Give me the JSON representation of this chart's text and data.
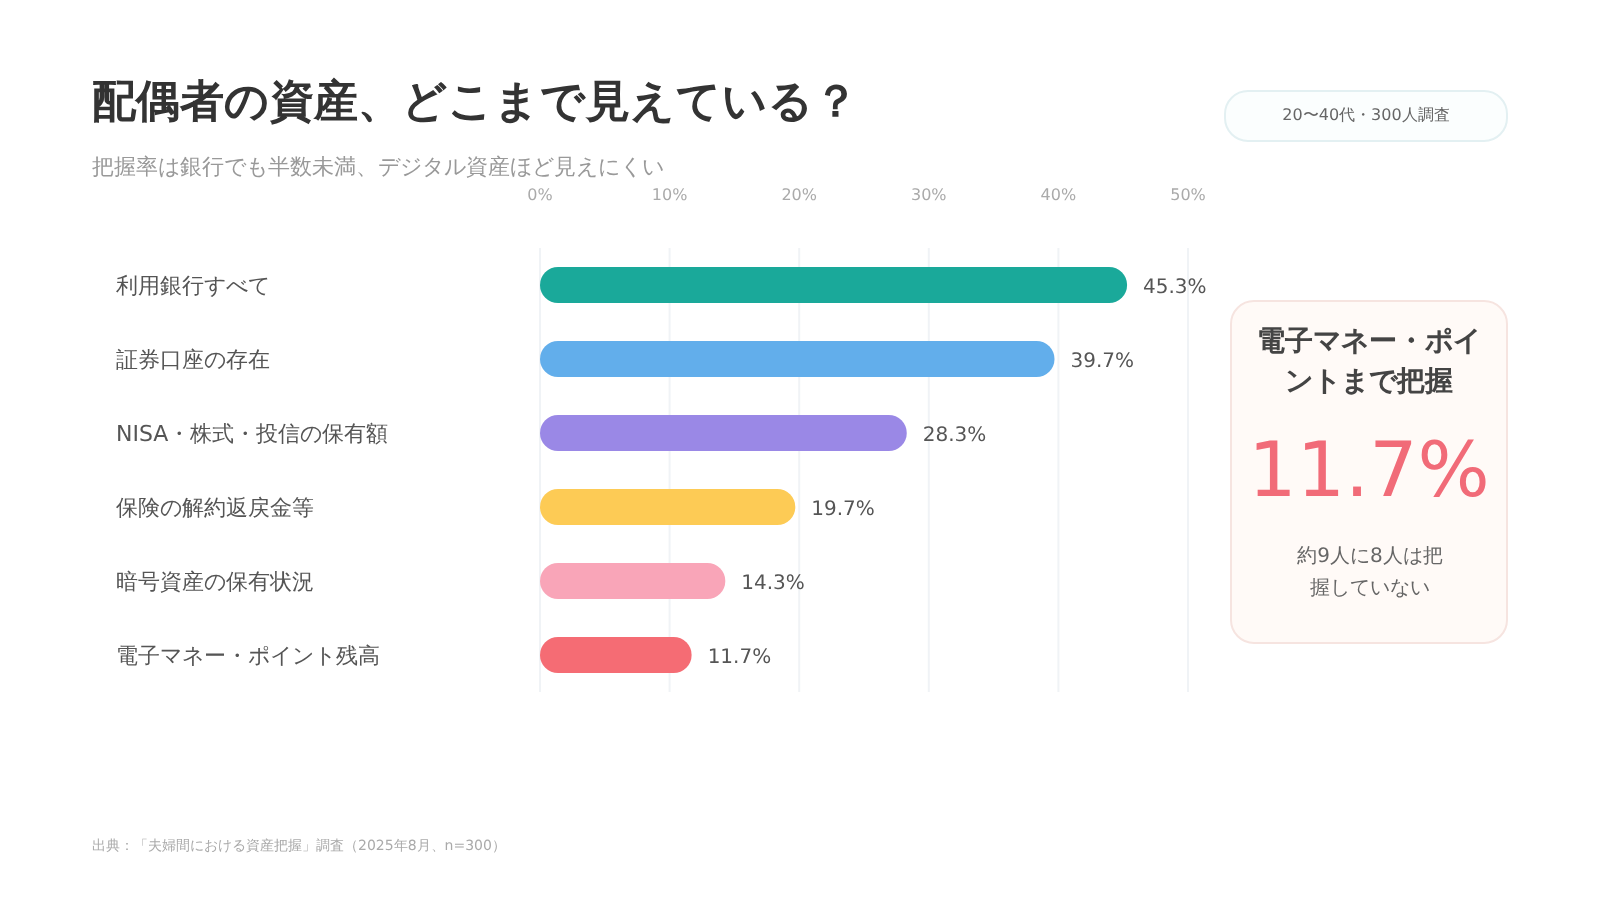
{
  "chart_data": [
    {
      "type": "bar",
      "orientation": "horizontal",
      "title": "配偶者の資産、どこまで見えている？",
      "subtitle": "把握率は銀行でも半数未満、デジタル資産ほど見えにくい",
      "categories": [
        "利用銀行すべて",
        "証券口座の存在",
        "NISA・株式・投信の保有額",
        "保険の解約返戻金等",
        "暗号資産の保有状況",
        "電子マネー・ポイント残高"
      ],
      "values": [
        45.3,
        39.7,
        28.3,
        19.7,
        14.3,
        11.7
      ],
      "value_labels": [
        "45.3%",
        "39.7%",
        "28.3%",
        "19.7%",
        "14.3%",
        "11.7%"
      ],
      "colors": [
        "#1aa99a",
        "#62aeeb",
        "#9a88e6",
        "#fdcb55",
        "#f9a5b8",
        "#f56c74"
      ],
      "xlim": [
        0,
        50
      ],
      "xticks": [
        {
          "value": 0,
          "label": "0%"
        },
        {
          "value": 10,
          "label": "10%"
        },
        {
          "value": 20,
          "label": "20%"
        },
        {
          "value": 30,
          "label": "30%"
        },
        {
          "value": 40,
          "label": "40%"
        },
        {
          "value": 50,
          "label": "50%"
        }
      ],
      "grid": "x",
      "annotations": [
        "20〜40代・300人調査",
        "出典：「夫婦間における資産把握」調査（2025年8月、n=300）"
      ]
    },
    {
      "type": "other",
      "title": "電子マネー・ポイントまで把握",
      "annotations": [
        "11.7%",
        "約9人に8人は把握していない"
      ]
    }
  ]
}
